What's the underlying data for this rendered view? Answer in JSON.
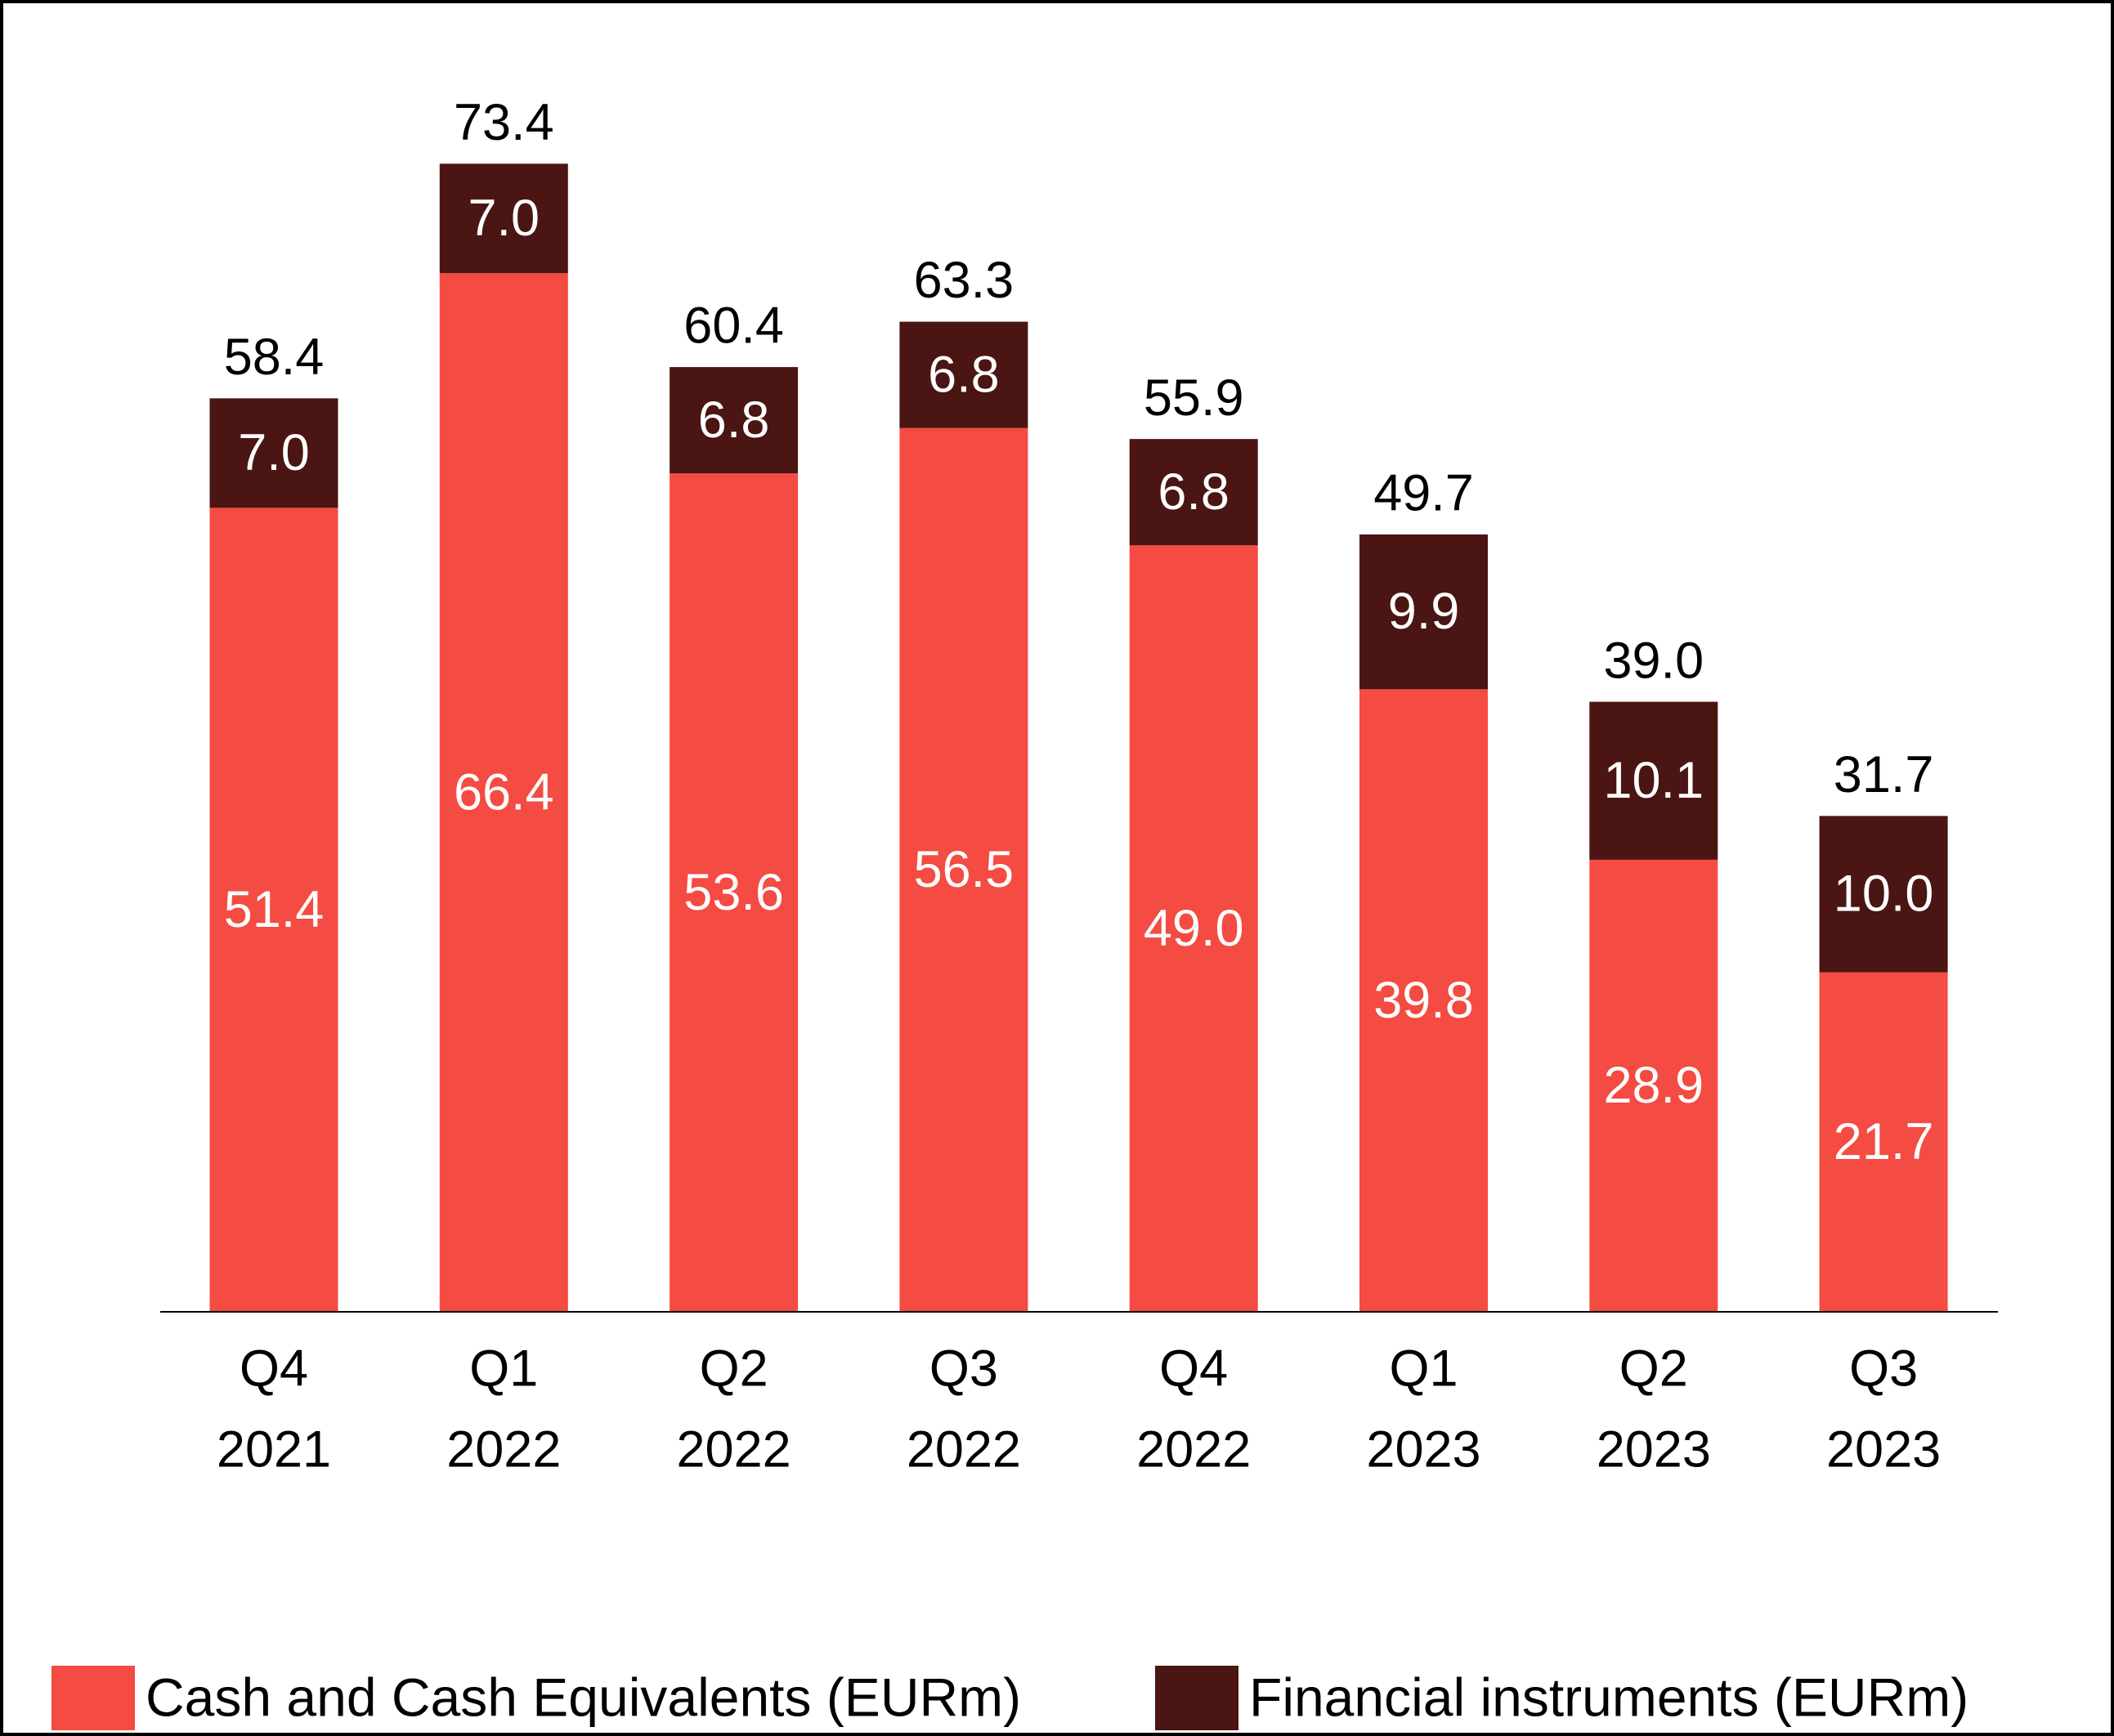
{
  "chart_data": {
    "type": "stacked_bar",
    "categories": [
      [
        "Q4",
        "2021"
      ],
      [
        "Q1",
        "2022"
      ],
      [
        "Q2",
        "2022"
      ],
      [
        "Q3",
        "2022"
      ],
      [
        "Q4",
        "2022"
      ],
      [
        "Q1",
        "2023"
      ],
      [
        "Q2",
        "2023"
      ],
      [
        "Q3",
        "2023"
      ]
    ],
    "series": [
      {
        "name": "Cash and Cash Equivalents (EURm)",
        "color": "#f44b42",
        "values": [
          51.4,
          66.4,
          53.6,
          56.5,
          49.0,
          39.8,
          28.9,
          21.7
        ],
        "value_labels": [
          "51.4",
          "66.4",
          "53.6",
          "56.5",
          "49.0",
          "39.8",
          "28.9",
          "21.7"
        ]
      },
      {
        "name": "Financial instruments (EURm)",
        "color": "#4a1513",
        "values": [
          7.0,
          7.0,
          6.8,
          6.8,
          6.8,
          9.9,
          10.1,
          10.0
        ],
        "value_labels": [
          "7.0",
          "7.0",
          "6.8",
          "6.8",
          "6.8",
          "9.9",
          "10.1",
          "10.0"
        ]
      }
    ],
    "totals": [
      58.4,
      73.4,
      60.4,
      63.3,
      55.9,
      49.7,
      39.0,
      31.7
    ],
    "total_labels": [
      "58.4",
      "73.4",
      "60.4",
      "63.3",
      "55.9",
      "49.7",
      "39.0",
      "31.7"
    ],
    "ylim": [
      0,
      80
    ]
  }
}
